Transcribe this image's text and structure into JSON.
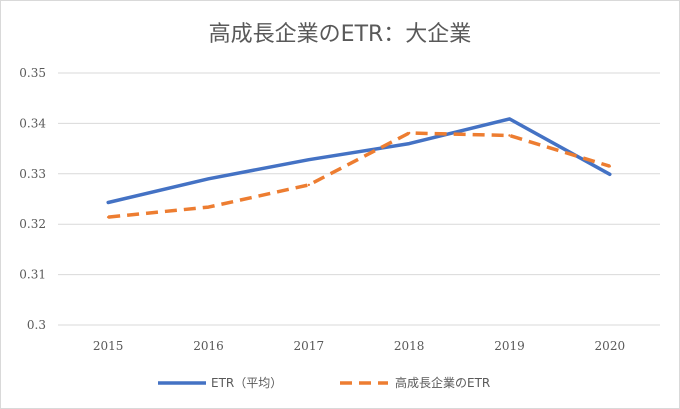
{
  "chart_data": {
    "type": "line",
    "title": "高成長企業のETR：大企業",
    "categories": [
      "2015",
      "2016",
      "2017",
      "2018",
      "2019",
      "2020"
    ],
    "ylim": [
      0.3,
      0.35
    ],
    "yticks": [
      "0.3",
      "0.31",
      "0.32",
      "0.33",
      "0.34",
      "0.35"
    ],
    "grid": "horizontal",
    "legend_position": "bottom",
    "series": [
      {
        "name": "ETR（平均）",
        "color": "#4472c4",
        "style": "solid",
        "values": [
          0.3243,
          0.329,
          0.3328,
          0.336,
          0.3409,
          0.3299
        ]
      },
      {
        "name": "高成長企業のETR",
        "color": "#ed7d31",
        "style": "dashed",
        "values": [
          0.3214,
          0.3234,
          0.3278,
          0.3381,
          0.3376,
          0.3315
        ]
      }
    ]
  }
}
